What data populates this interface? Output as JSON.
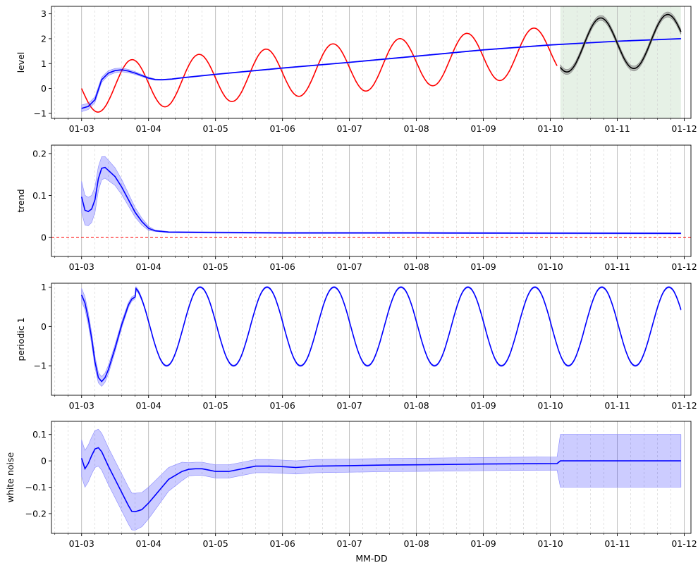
{
  "figure": {
    "xlabel": "MM-DD",
    "x_ticks": [
      "01-03",
      "01-04",
      "01-05",
      "01-06",
      "01-07",
      "01-08",
      "01-09",
      "01-10",
      "01-11",
      "01-12"
    ]
  },
  "chart_data": [
    {
      "type": "line",
      "ylabel": "level",
      "xlim": [
        2.55,
        12.1
      ],
      "ylim": [
        -1.2,
        3.3
      ],
      "y_ticks": [
        -1,
        0,
        1,
        2,
        3
      ],
      "grid": "major x solid, minor x dashed",
      "shaded_x_region": {
        "x": [
          10.15,
          11.95
        ],
        "color": "#2e8b2e"
      },
      "series": [
        {
          "color": "#ff0000",
          "x": [
            3.0,
            10.1
          ],
          "model": "sine",
          "amplitude": 1.0,
          "period": 1.0,
          "phase_peak_x": 3.75,
          "trend_start": 0.0,
          "trend_end": 1.5
        },
        {
          "color": "#0000ff",
          "band": true,
          "points": [
            [
              3.0,
              -0.8
            ],
            [
              3.1,
              -0.72
            ],
            [
              3.2,
              -0.45
            ],
            [
              3.3,
              0.35
            ],
            [
              3.4,
              0.62
            ],
            [
              3.5,
              0.72
            ],
            [
              3.6,
              0.75
            ],
            [
              3.7,
              0.7
            ],
            [
              3.8,
              0.62
            ],
            [
              3.9,
              0.52
            ],
            [
              4.0,
              0.42
            ],
            [
              4.1,
              0.36
            ],
            [
              4.2,
              0.35
            ],
            [
              4.35,
              0.38
            ],
            [
              4.5,
              0.43
            ],
            [
              5.0,
              0.57
            ],
            [
              6.0,
              0.82
            ],
            [
              7.0,
              1.05
            ],
            [
              8.0,
              1.3
            ],
            [
              9.0,
              1.55
            ],
            [
              10.0,
              1.75
            ],
            [
              11.0,
              1.9
            ],
            [
              11.95,
              2.0
            ]
          ]
        },
        {
          "color": "#000000",
          "band": true,
          "x": [
            10.15,
            11.95
          ],
          "model": "sine",
          "amplitude": 1.05,
          "period": 1.0,
          "phase_peak_x": 10.75,
          "trend_start": 1.7,
          "trend_end": 1.95
        }
      ]
    },
    {
      "type": "line",
      "ylabel": "trend",
      "xlim": [
        2.55,
        12.1
      ],
      "ylim": [
        -0.045,
        0.22
      ],
      "y_ticks": [
        0.0,
        0.1,
        0.2
      ],
      "reference_line": {
        "y": 0.0,
        "color": "#ff0000",
        "style": "dashed"
      },
      "series": [
        {
          "color": "#0000ff",
          "band": true,
          "points": [
            [
              3.0,
              0.097
            ],
            [
              3.05,
              0.065
            ],
            [
              3.1,
              0.062
            ],
            [
              3.15,
              0.068
            ],
            [
              3.2,
              0.09
            ],
            [
              3.25,
              0.14
            ],
            [
              3.3,
              0.165
            ],
            [
              3.35,
              0.167
            ],
            [
              3.4,
              0.16
            ],
            [
              3.5,
              0.145
            ],
            [
              3.6,
              0.12
            ],
            [
              3.7,
              0.09
            ],
            [
              3.8,
              0.06
            ],
            [
              3.9,
              0.038
            ],
            [
              4.0,
              0.022
            ],
            [
              4.1,
              0.016
            ],
            [
              4.3,
              0.013
            ],
            [
              5.0,
              0.012
            ],
            [
              6.0,
              0.011
            ],
            [
              8.0,
              0.011
            ],
            [
              11.95,
              0.01
            ]
          ]
        }
      ]
    },
    {
      "type": "line",
      "ylabel": "periodic 1",
      "xlim": [
        2.55,
        12.1
      ],
      "ylim": [
        -1.75,
        1.1
      ],
      "y_ticks": [
        -1,
        0,
        1
      ],
      "series": [
        {
          "color": "#0000ff",
          "band": true,
          "points": [
            [
              3.0,
              0.8
            ],
            [
              3.05,
              0.6
            ],
            [
              3.1,
              0.2
            ],
            [
              3.15,
              -0.3
            ],
            [
              3.2,
              -0.9
            ],
            [
              3.25,
              -1.3
            ],
            [
              3.3,
              -1.4
            ],
            [
              3.35,
              -1.3
            ],
            [
              3.4,
              -1.1
            ],
            [
              3.5,
              -0.55
            ],
            [
              3.6,
              0.05
            ],
            [
              3.7,
              0.55
            ],
            [
              3.75,
              0.7
            ],
            [
              3.8,
              0.75
            ]
          ],
          "continuation": {
            "model": "cosine",
            "amplitude": 1.0,
            "period": 1.0,
            "phase_peak_x": 3.77,
            "x_end": 11.95
          }
        }
      ]
    },
    {
      "type": "line",
      "ylabel": "white noise",
      "xlim": [
        2.55,
        12.1
      ],
      "ylim": [
        -0.275,
        0.15
      ],
      "y_ticks": [
        -0.2,
        -0.1,
        0.0,
        0.1
      ],
      "series": [
        {
          "color": "#0000ff",
          "band": true,
          "points": [
            [
              3.0,
              0.01
            ],
            [
              3.05,
              -0.03
            ],
            [
              3.1,
              -0.01
            ],
            [
              3.15,
              0.02
            ],
            [
              3.2,
              0.045
            ],
            [
              3.25,
              0.05
            ],
            [
              3.3,
              0.035
            ],
            [
              3.4,
              -0.02
            ],
            [
              3.5,
              -0.07
            ],
            [
              3.6,
              -0.12
            ],
            [
              3.7,
              -0.17
            ],
            [
              3.75,
              -0.192
            ],
            [
              3.8,
              -0.193
            ],
            [
              3.9,
              -0.185
            ],
            [
              4.0,
              -0.16
            ],
            [
              4.1,
              -0.13
            ],
            [
              4.2,
              -0.1
            ],
            [
              4.3,
              -0.07
            ],
            [
              4.4,
              -0.055
            ],
            [
              4.5,
              -0.04
            ],
            [
              4.6,
              -0.032
            ],
            [
              4.7,
              -0.03
            ],
            [
              4.8,
              -0.03
            ],
            [
              4.9,
              -0.035
            ],
            [
              5.0,
              -0.04
            ],
            [
              5.2,
              -0.04
            ],
            [
              5.4,
              -0.03
            ],
            [
              5.6,
              -0.02
            ],
            [
              5.8,
              -0.02
            ],
            [
              6.0,
              -0.022
            ],
            [
              6.2,
              -0.025
            ],
            [
              6.5,
              -0.02
            ],
            [
              7.0,
              -0.018
            ],
            [
              7.5,
              -0.016
            ],
            [
              8.0,
              -0.015
            ],
            [
              9.0,
              -0.012
            ],
            [
              10.1,
              -0.01
            ],
            [
              10.15,
              0.0
            ],
            [
              11.95,
              0.0
            ]
          ],
          "band_override": {
            "x": [
              10.15,
              11.95
            ],
            "lower": -0.1,
            "upper": 0.1
          }
        }
      ]
    }
  ]
}
